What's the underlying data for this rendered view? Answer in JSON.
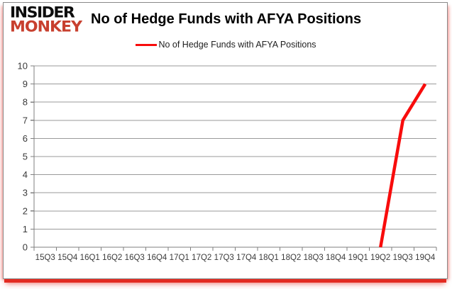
{
  "logo": {
    "line1": "INSIDER",
    "line2": "MONKEY"
  },
  "header": {
    "title": "No of Hedge Funds with AFYA Positions"
  },
  "legend": {
    "label": "No of Hedge Funds with AFYA Positions"
  },
  "colors": {
    "series_red": "#f80c0c",
    "grid": "#9a9a9a",
    "axis": "#7f7f7f",
    "tick_text": "#3a3a3a",
    "title_text": "#000000",
    "logo_black": "#0d0d0d",
    "logo_red": "#c8402f",
    "border_red": "#e32b22",
    "frame_gray": "#8a8a8a"
  },
  "chart_data": {
    "type": "line",
    "title": "No of Hedge Funds with AFYA Positions",
    "categories": [
      "15Q3",
      "15Q4",
      "16Q1",
      "16Q2",
      "16Q3",
      "16Q4",
      "17Q1",
      "17Q2",
      "17Q3",
      "17Q4",
      "18Q1",
      "18Q2",
      "18Q3",
      "18Q4",
      "19Q1",
      "19Q2",
      "19Q3",
      "19Q4"
    ],
    "series": [
      {
        "name": "No of Hedge Funds with AFYA Positions",
        "color": "#f80c0c",
        "values": [
          null,
          null,
          null,
          null,
          null,
          null,
          null,
          null,
          null,
          null,
          null,
          null,
          null,
          null,
          null,
          0,
          7,
          9
        ]
      }
    ],
    "xlabel": "",
    "ylabel": "",
    "ylim": [
      0,
      10
    ],
    "yticks": [
      0,
      1,
      2,
      3,
      4,
      5,
      6,
      7,
      8,
      9,
      10
    ],
    "grid": true,
    "legend_position": "top-center"
  }
}
